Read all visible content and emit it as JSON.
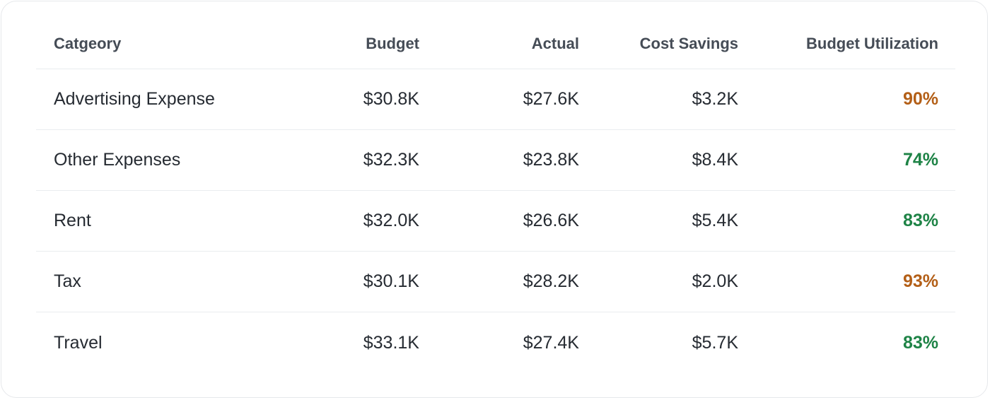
{
  "table": {
    "columns": [
      "Catgeory",
      "Budget",
      "Actual",
      "Cost Savings",
      "Budget Utilization"
    ],
    "rows": [
      {
        "category": "Advertising Expense",
        "budget": "$30.8K",
        "actual": "$27.6K",
        "savings": "$3.2K",
        "utilization": "90%",
        "util_color": "#b35f17"
      },
      {
        "category": "Other Expenses",
        "budget": "$32.3K",
        "actual": "$23.8K",
        "savings": "$8.4K",
        "utilization": "74%",
        "util_color": "#1e8346"
      },
      {
        "category": "Rent",
        "budget": "$32.0K",
        "actual": "$26.6K",
        "savings": "$5.4K",
        "utilization": "83%",
        "util_color": "#1e8346"
      },
      {
        "category": "Tax",
        "budget": "$30.1K",
        "actual": "$28.2K",
        "savings": "$2.0K",
        "utilization": "93%",
        "util_color": "#b35f17"
      },
      {
        "category": "Travel",
        "budget": "$33.1K",
        "actual": "$27.4K",
        "savings": "$5.7K",
        "utilization": "83%",
        "util_color": "#1e8346"
      }
    ]
  },
  "colors": {
    "warning": "#b35f17",
    "good": "#1e8346"
  }
}
